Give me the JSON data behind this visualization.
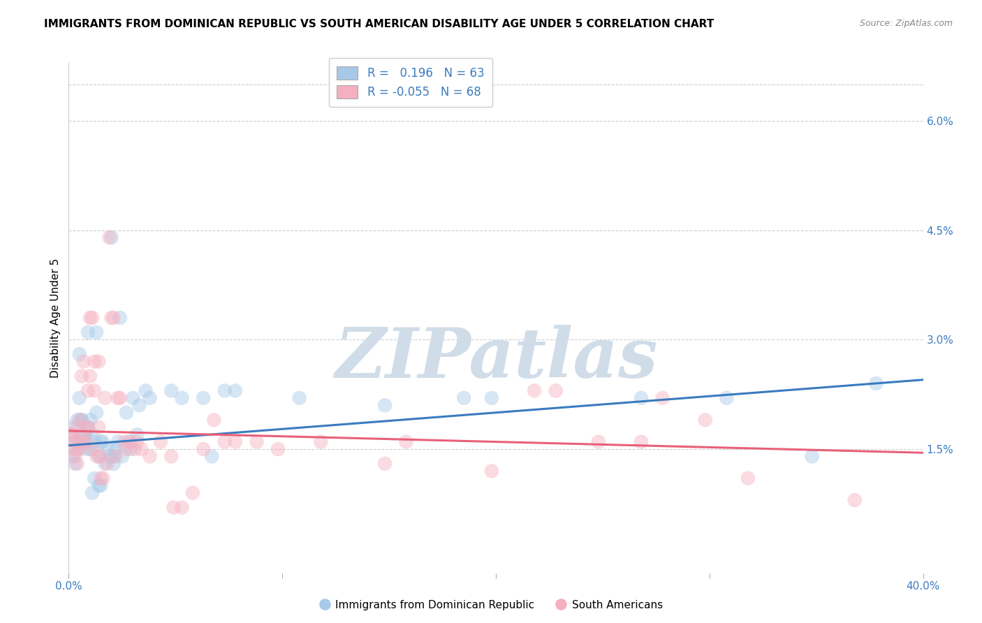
{
  "title": "IMMIGRANTS FROM DOMINICAN REPUBLIC VS SOUTH AMERICAN DISABILITY AGE UNDER 5 CORRELATION CHART",
  "source": "Source: ZipAtlas.com",
  "ylabel": "Disability Age Under 5",
  "right_yticks": [
    "6.0%",
    "4.5%",
    "3.0%",
    "1.5%"
  ],
  "right_ytick_vals": [
    0.06,
    0.045,
    0.03,
    0.015
  ],
  "xlim": [
    0.0,
    0.4
  ],
  "ylim": [
    -0.002,
    0.068
  ],
  "series1_color": "#a8c8e8",
  "series2_color": "#f4b0c0",
  "line1_color": "#3a7bbf",
  "line2_color": "#e8607a",
  "watermark": "ZIPatlas",
  "blue_dots": [
    [
      0.001,
      0.017
    ],
    [
      0.002,
      0.014
    ],
    [
      0.002,
      0.018
    ],
    [
      0.003,
      0.013
    ],
    [
      0.003,
      0.016
    ],
    [
      0.004,
      0.019
    ],
    [
      0.004,
      0.015
    ],
    [
      0.005,
      0.028
    ],
    [
      0.005,
      0.016
    ],
    [
      0.005,
      0.022
    ],
    [
      0.006,
      0.019
    ],
    [
      0.006,
      0.019
    ],
    [
      0.007,
      0.017
    ],
    [
      0.007,
      0.016
    ],
    [
      0.008,
      0.015
    ],
    [
      0.008,
      0.017
    ],
    [
      0.009,
      0.018
    ],
    [
      0.009,
      0.031
    ],
    [
      0.01,
      0.019
    ],
    [
      0.01,
      0.015
    ],
    [
      0.011,
      0.017
    ],
    [
      0.011,
      0.009
    ],
    [
      0.012,
      0.011
    ],
    [
      0.012,
      0.016
    ],
    [
      0.013,
      0.02
    ],
    [
      0.013,
      0.031
    ],
    [
      0.014,
      0.014
    ],
    [
      0.014,
      0.01
    ],
    [
      0.015,
      0.016
    ],
    [
      0.015,
      0.01
    ],
    [
      0.016,
      0.016
    ],
    [
      0.017,
      0.013
    ],
    [
      0.018,
      0.015
    ],
    [
      0.019,
      0.014
    ],
    [
      0.02,
      0.044
    ],
    [
      0.021,
      0.014
    ],
    [
      0.021,
      0.013
    ],
    [
      0.022,
      0.015
    ],
    [
      0.023,
      0.016
    ],
    [
      0.024,
      0.033
    ],
    [
      0.025,
      0.014
    ],
    [
      0.027,
      0.02
    ],
    [
      0.028,
      0.016
    ],
    [
      0.029,
      0.015
    ],
    [
      0.03,
      0.022
    ],
    [
      0.032,
      0.017
    ],
    [
      0.033,
      0.021
    ],
    [
      0.036,
      0.023
    ],
    [
      0.038,
      0.022
    ],
    [
      0.048,
      0.023
    ],
    [
      0.053,
      0.022
    ],
    [
      0.063,
      0.022
    ],
    [
      0.067,
      0.014
    ],
    [
      0.073,
      0.023
    ],
    [
      0.078,
      0.023
    ],
    [
      0.108,
      0.022
    ],
    [
      0.148,
      0.021
    ],
    [
      0.185,
      0.022
    ],
    [
      0.198,
      0.022
    ],
    [
      0.268,
      0.022
    ],
    [
      0.308,
      0.022
    ],
    [
      0.348,
      0.014
    ],
    [
      0.378,
      0.024
    ]
  ],
  "pink_dots": [
    [
      0.001,
      0.017
    ],
    [
      0.002,
      0.017
    ],
    [
      0.002,
      0.015
    ],
    [
      0.003,
      0.016
    ],
    [
      0.003,
      0.014
    ],
    [
      0.004,
      0.015
    ],
    [
      0.004,
      0.013
    ],
    [
      0.004,
      0.018
    ],
    [
      0.005,
      0.015
    ],
    [
      0.005,
      0.019
    ],
    [
      0.006,
      0.017
    ],
    [
      0.006,
      0.025
    ],
    [
      0.007,
      0.016
    ],
    [
      0.007,
      0.027
    ],
    [
      0.008,
      0.016
    ],
    [
      0.008,
      0.018
    ],
    [
      0.009,
      0.023
    ],
    [
      0.009,
      0.018
    ],
    [
      0.01,
      0.025
    ],
    [
      0.01,
      0.033
    ],
    [
      0.011,
      0.033
    ],
    [
      0.011,
      0.015
    ],
    [
      0.012,
      0.023
    ],
    [
      0.012,
      0.027
    ],
    [
      0.013,
      0.014
    ],
    [
      0.014,
      0.018
    ],
    [
      0.014,
      0.027
    ],
    [
      0.015,
      0.014
    ],
    [
      0.015,
      0.011
    ],
    [
      0.016,
      0.011
    ],
    [
      0.017,
      0.022
    ],
    [
      0.018,
      0.013
    ],
    [
      0.019,
      0.044
    ],
    [
      0.02,
      0.033
    ],
    [
      0.021,
      0.033
    ],
    [
      0.022,
      0.014
    ],
    [
      0.023,
      0.022
    ],
    [
      0.024,
      0.022
    ],
    [
      0.026,
      0.016
    ],
    [
      0.027,
      0.015
    ],
    [
      0.029,
      0.016
    ],
    [
      0.031,
      0.015
    ],
    [
      0.032,
      0.016
    ],
    [
      0.034,
      0.015
    ],
    [
      0.038,
      0.014
    ],
    [
      0.043,
      0.016
    ],
    [
      0.048,
      0.014
    ],
    [
      0.049,
      0.007
    ],
    [
      0.053,
      0.007
    ],
    [
      0.058,
      0.009
    ],
    [
      0.063,
      0.015
    ],
    [
      0.068,
      0.019
    ],
    [
      0.073,
      0.016
    ],
    [
      0.078,
      0.016
    ],
    [
      0.088,
      0.016
    ],
    [
      0.098,
      0.015
    ],
    [
      0.118,
      0.016
    ],
    [
      0.148,
      0.013
    ],
    [
      0.158,
      0.016
    ],
    [
      0.198,
      0.012
    ],
    [
      0.218,
      0.023
    ],
    [
      0.228,
      0.023
    ],
    [
      0.248,
      0.016
    ],
    [
      0.268,
      0.016
    ],
    [
      0.278,
      0.022
    ],
    [
      0.298,
      0.019
    ],
    [
      0.318,
      0.011
    ],
    [
      0.368,
      0.008
    ]
  ],
  "line1_x": [
    0.0,
    0.4
  ],
  "line1_y": [
    0.0155,
    0.0245
  ],
  "line2_x": [
    0.0,
    0.4
  ],
  "line2_y": [
    0.0175,
    0.0145
  ],
  "grid_color": "#d0d0d0",
  "background_color": "#ffffff",
  "title_fontsize": 11,
  "axis_label_fontsize": 11,
  "tick_fontsize": 11,
  "watermark_color": "#d0dde8",
  "dot_size": 220,
  "dot_alpha": 0.45,
  "legend_label1": "R =   0.196   N = 63",
  "legend_label2": "R = -0.055   N = 68",
  "bottom_legend_label1": "Immigrants from Dominican Republic",
  "bottom_legend_label2": "South Americans"
}
